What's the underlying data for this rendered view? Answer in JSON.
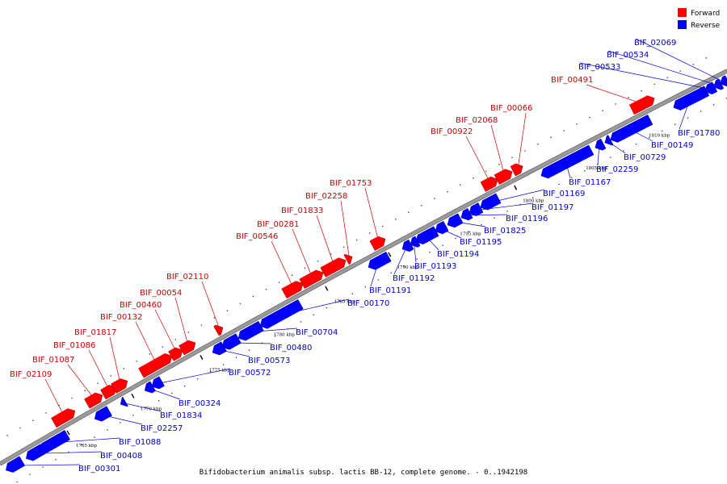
{
  "legend": {
    "forward_label": "Forward",
    "reverse_label": "Reverse",
    "forward_color": "#ff0000",
    "reverse_color": "#0000ff"
  },
  "caption": "Bifidobacterium animalis subsp. lactis BB-12, complete genome. - 0..1942198",
  "tick_labels": [
    "1765 kbp",
    "1770 kbp",
    "1775 kbp",
    "1780 kbp",
    "1785 kbp",
    "1790 kbp",
    "1795 kbp",
    "1800 kbp",
    "1805 kbp",
    "1810 kbp"
  ],
  "genes_forward": [
    "BIF_02109",
    "BIF_01087",
    "BIF_01086",
    "BIF_01817",
    "BIF_00132",
    "BIF_00460",
    "BIF_00054",
    "BIF_02110",
    "BIF_00546",
    "BIF_00281",
    "BIF_01833",
    "BIF_02258",
    "BIF_01753",
    "BIF_00922",
    "BIF_02068",
    "BIF_00066",
    "BIF_00491"
  ],
  "genes_reverse": [
    "BIF_00301",
    "BIF_00408",
    "BIF_01088",
    "BIF_02257",
    "BIF_01834",
    "BIF_00324",
    "BIF_00572",
    "BIF_00573",
    "BIF_00480",
    "BIF_00704",
    "BIF_00170",
    "BIF_01191",
    "BIF_01192",
    "BIF_01193",
    "BIF_01194",
    "BIF_01195",
    "BIF_01825",
    "BIF_01196",
    "BIF_01197",
    "BIF_01169",
    "BIF_01167",
    "BIF_02259",
    "BIF_00729",
    "BIF_00149",
    "BIF_01780",
    "BIF_00533",
    "BIF_00534",
    "BIF_02069"
  ]
}
